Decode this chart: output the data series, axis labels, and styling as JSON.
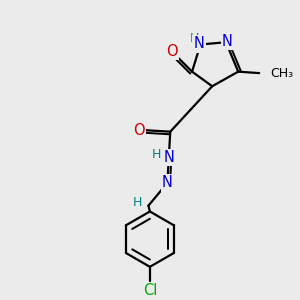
{
  "background_color": "#ebebeb",
  "atom_colors": {
    "C": "#000000",
    "N": "#0000cc",
    "O": "#cc0000",
    "H": "#008080",
    "Cl": "#00aa00"
  },
  "bond_color": "#000000",
  "bond_width": 1.6,
  "fig_size": [
    3.0,
    3.0
  ],
  "dpi": 100
}
